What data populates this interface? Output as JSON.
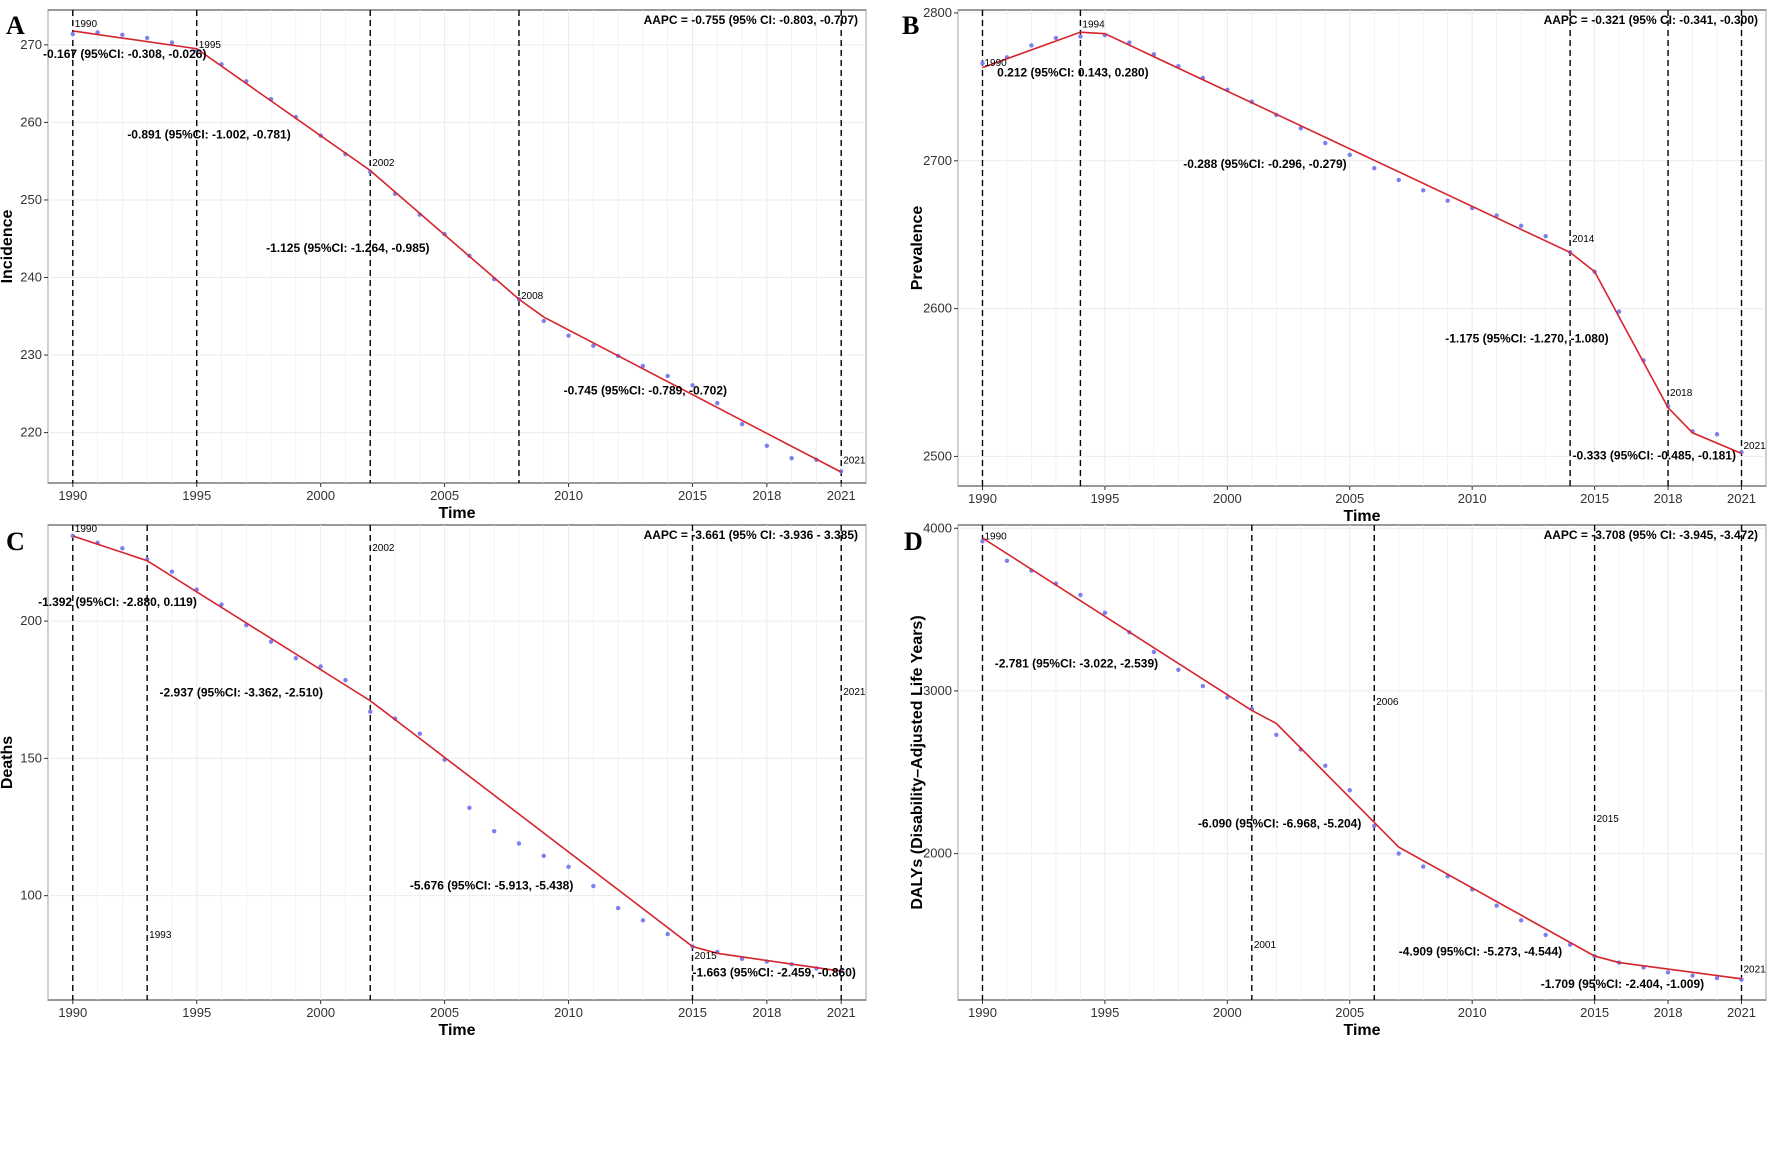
{
  "colors": {
    "fit_line": "#d7232b",
    "points": "#7b7ff0",
    "grid": "#ebebeb",
    "panel_border": "#333333",
    "joinpoint_line": "#000000"
  },
  "chart_data": [
    {
      "panel": "A",
      "type": "line",
      "ylabel": "Incidence",
      "xlabel": "Time",
      "xlim": [
        1989,
        2022
      ],
      "ylim": [
        213.5,
        274.5
      ],
      "xticks": [
        1990,
        1995,
        2000,
        2005,
        2010,
        2015,
        2018,
        2021
      ],
      "yticks": [
        220,
        230,
        240,
        250,
        260,
        270
      ],
      "aapc": "AAPC = -0.755 (95% CI: -0.803, -0.707)",
      "joinpoints": [
        1990,
        1995,
        2002,
        2008,
        2021
      ],
      "jp_labels": [
        {
          "text": "1990",
          "x": 1990,
          "y": 272.3
        },
        {
          "text": "1995",
          "x": 1995,
          "y": 269.6
        },
        {
          "text": "2002",
          "x": 2002,
          "y": 254.4
        },
        {
          "text": "2008",
          "x": 2008,
          "y": 237.2
        },
        {
          "text": "2021",
          "x": 2021,
          "y": 216.0
        }
      ],
      "segments": [
        {
          "text": "-0.167 (95%CI: -0.308, -0.026)",
          "x": 1988.8,
          "y": 268.3
        },
        {
          "text": "-0.891 (95%CI: -1.002, -0.781)",
          "x": 1992.2,
          "y": 257.9
        },
        {
          "text": "-1.125 (95%CI: -1.264, -0.985)",
          "x": 1997.8,
          "y": 243.3
        },
        {
          "text": "-0.745 (95%CI: -0.789, -0.702)",
          "x": 2009.8,
          "y": 224.9
        }
      ],
      "fit": [
        [
          1990,
          271.8
        ],
        [
          1995,
          269.5
        ],
        [
          2002,
          253.8
        ],
        [
          2008,
          237.2
        ],
        [
          2009,
          234.9
        ],
        [
          2021,
          214.9
        ]
      ],
      "points": [
        [
          1990,
          271.4
        ],
        [
          1991,
          271.6
        ],
        [
          1992,
          271.3
        ],
        [
          1993,
          270.9
        ],
        [
          1994,
          270.3
        ],
        [
          1995,
          269.3
        ],
        [
          1996,
          267.5
        ],
        [
          1997,
          265.3
        ],
        [
          1998,
          263.0
        ],
        [
          1999,
          260.7
        ],
        [
          2000,
          258.3
        ],
        [
          2001,
          255.9
        ],
        [
          2002,
          253.6
        ],
        [
          2003,
          250.8
        ],
        [
          2004,
          248.1
        ],
        [
          2005,
          245.6
        ],
        [
          2006,
          242.8
        ],
        [
          2007,
          239.8
        ],
        [
          2008,
          237.2
        ],
        [
          2009,
          234.4
        ],
        [
          2010,
          232.5
        ],
        [
          2011,
          231.2
        ],
        [
          2012,
          229.9
        ],
        [
          2013,
          228.6
        ],
        [
          2014,
          227.3
        ],
        [
          2015,
          226.1
        ],
        [
          2016,
          223.8
        ],
        [
          2017,
          221.1
        ],
        [
          2018,
          218.3
        ],
        [
          2019,
          216.7
        ],
        [
          2020,
          216.5
        ],
        [
          2021,
          215.0
        ]
      ]
    },
    {
      "panel": "B",
      "type": "line",
      "ylabel": "Prevalence",
      "xlabel": "Time",
      "xlim": [
        1989,
        2022
      ],
      "ylim": [
        2480,
        2802
      ],
      "xticks": [
        1990,
        1995,
        2000,
        2005,
        2010,
        2015,
        2018,
        2021
      ],
      "yticks": [
        2500,
        2600,
        2700,
        2800
      ],
      "aapc": "AAPC = -0.321 (95% CI: -0.341, -0.300)",
      "joinpoints": [
        1990,
        1994,
        2014,
        2018,
        2021
      ],
      "jp_labels": [
        {
          "text": "1990",
          "x": 1990,
          "y": 2764
        },
        {
          "text": "1994",
          "x": 1994,
          "y": 2790
        },
        {
          "text": "2014",
          "x": 2014,
          "y": 2645
        },
        {
          "text": "2018",
          "x": 2018,
          "y": 2541
        },
        {
          "text": "2021",
          "x": 2021,
          "y": 2505
        }
      ],
      "segments": [
        {
          "text": "0.212 (95%CI: 0.143, 0.280)",
          "x": 1990.6,
          "y": 2757
        },
        {
          "text": "-0.288 (95%CI: -0.296, -0.279)",
          "x": 1998.2,
          "y": 2695
        },
        {
          "text": "-1.175 (95%CI: -1.270, -1.080)",
          "x": 2008.9,
          "y": 2577
        },
        {
          "text": "-0.333 (95%CI: -0.485, -0.181)",
          "x": 2014.1,
          "y": 2498
        }
      ],
      "fit": [
        [
          1990,
          2763
        ],
        [
          1994,
          2787
        ],
        [
          1995,
          2786
        ],
        [
          2014,
          2638
        ],
        [
          2015,
          2625
        ],
        [
          2018,
          2533
        ],
        [
          2019,
          2516
        ],
        [
          2021,
          2502
        ]
      ],
      "points": [
        [
          1990,
          2766
        ],
        [
          1991,
          2770
        ],
        [
          1992,
          2778
        ],
        [
          1993,
          2783
        ],
        [
          1994,
          2784
        ],
        [
          1995,
          2785
        ],
        [
          1996,
          2780
        ],
        [
          1997,
          2772
        ],
        [
          1998,
          2764
        ],
        [
          1999,
          2756
        ],
        [
          2000,
          2748
        ],
        [
          2001,
          2740
        ],
        [
          2002,
          2731
        ],
        [
          2003,
          2722
        ],
        [
          2004,
          2712
        ],
        [
          2005,
          2704
        ],
        [
          2006,
          2695
        ],
        [
          2007,
          2687
        ],
        [
          2008,
          2680
        ],
        [
          2009,
          2673
        ],
        [
          2010,
          2668
        ],
        [
          2011,
          2663
        ],
        [
          2012,
          2656
        ],
        [
          2013,
          2649
        ],
        [
          2014,
          2638
        ],
        [
          2015,
          2625
        ],
        [
          2016,
          2598
        ],
        [
          2017,
          2565
        ],
        [
          2018,
          2534
        ],
        [
          2019,
          2517
        ],
        [
          2020,
          2515
        ],
        [
          2021,
          2503
        ]
      ]
    },
    {
      "panel": "C",
      "type": "line",
      "ylabel": "Deaths",
      "xlabel": "Time",
      "xlim": [
        1989,
        2022
      ],
      "ylim": [
        62,
        235
      ],
      "xticks": [
        1990,
        1995,
        2000,
        2005,
        2010,
        2015,
        2018,
        2021
      ],
      "yticks": [
        100,
        150,
        200
      ],
      "aapc": "AAPC = -3.661 (95% CI: -3.936 - 3.385)",
      "joinpoints": [
        1990,
        1993,
        2002,
        2015,
        2021
      ],
      "jp_labels": [
        {
          "text": "1990",
          "x": 1990,
          "y": 232.5
        },
        {
          "text": "1993",
          "x": 1993,
          "y": 84.5
        },
        {
          "text": "2002",
          "x": 2002,
          "y": 225.5
        },
        {
          "text": "2015",
          "x": 2015,
          "y": 77.0
        },
        {
          "text": "2021",
          "x": 2021,
          "y": 173.0
        }
      ],
      "segments": [
        {
          "text": "-1.392 (95%CI: -2.880, 0.119)",
          "x": 1988.6,
          "y": 205.5
        },
        {
          "text": "-2.937 (95%CI: -3.362, -2.510)",
          "x": 1993.5,
          "y": 172.5
        },
        {
          "text": "-5.676 (95%CI: -5.913, -5.438)",
          "x": 2003.6,
          "y": 102.3
        },
        {
          "text": "-1.663 (95%CI: -2.459, -0.860)",
          "x": 2015.0,
          "y": 70.5
        }
      ],
      "fit": [
        [
          1990,
          231.0
        ],
        [
          1993,
          222.0
        ],
        [
          2002,
          171.0
        ],
        [
          2015,
          81.5
        ],
        [
          2016,
          79.0
        ],
        [
          2021,
          72.5
        ]
      ],
      "points": [
        [
          1990,
          231.0
        ],
        [
          1991,
          228.5
        ],
        [
          1992,
          226.5
        ],
        [
          1993,
          222.5
        ],
        [
          1994,
          218.0
        ],
        [
          1995,
          211.5
        ],
        [
          1996,
          206.0
        ],
        [
          1997,
          198.5
        ],
        [
          1998,
          192.5
        ],
        [
          1999,
          186.5
        ],
        [
          2000,
          183.5
        ],
        [
          2001,
          178.5
        ],
        [
          2002,
          167.0
        ],
        [
          2003,
          164.5
        ],
        [
          2004,
          159.0
        ],
        [
          2005,
          149.5
        ],
        [
          2006,
          132.0
        ],
        [
          2007,
          123.5
        ],
        [
          2008,
          119.0
        ],
        [
          2009,
          114.5
        ],
        [
          2010,
          110.5
        ],
        [
          2011,
          103.5
        ],
        [
          2012,
          95.5
        ],
        [
          2013,
          91.0
        ],
        [
          2014,
          86.0
        ],
        [
          2015,
          81.5
        ],
        [
          2016,
          79.5
        ],
        [
          2017,
          77.0
        ],
        [
          2018,
          76.0
        ],
        [
          2019,
          75.0
        ],
        [
          2020,
          73.5
        ],
        [
          2021,
          72.5
        ]
      ]
    },
    {
      "panel": "D",
      "type": "line",
      "ylabel": "DALYs (Disability–Adjusted Life Years)",
      "xlabel": "Time",
      "xlim": [
        1989,
        2022
      ],
      "ylim": [
        1100,
        4020
      ],
      "xticks": [
        1990,
        1995,
        2000,
        2005,
        2010,
        2015,
        2018,
        2021
      ],
      "yticks": [
        2000,
        3000,
        4000
      ],
      "aapc": "AAPC = -3.708 (95% CI: -3.945, -3.472)",
      "joinpoints": [
        1990,
        2001,
        2006,
        2015,
        2021
      ],
      "jp_labels": [
        {
          "text": "1990",
          "x": 1990,
          "y": 3930
        },
        {
          "text": "2001",
          "x": 2001,
          "y": 1420
        },
        {
          "text": "2006",
          "x": 2006,
          "y": 2915
        },
        {
          "text": "2015",
          "x": 2015,
          "y": 2195
        },
        {
          "text": "2021",
          "x": 2021,
          "y": 1270
        }
      ],
      "segments": [
        {
          "text": "-2.781 (95%CI: -3.022, -2.539)",
          "x": 1990.5,
          "y": 3145
        },
        {
          "text": "-6.090 (95%CI: -6.968, -5.204)",
          "x": 1998.8,
          "y": 2160
        },
        {
          "text": "-4.909 (95%CI: -5.273, -4.544)",
          "x": 2007.0,
          "y": 1375
        },
        {
          "text": "-1.709 (95%CI: -2.404, -1.009)",
          "x": 2012.8,
          "y": 1175
        }
      ],
      "fit": [
        [
          1990,
          3940
        ],
        [
          2001,
          2880
        ],
        [
          2002,
          2800
        ],
        [
          2007,
          2040
        ],
        [
          2015,
          1370
        ],
        [
          2016,
          1330
        ],
        [
          2021,
          1230
        ]
      ],
      "points": [
        [
          1990,
          3920
        ],
        [
          1991,
          3800
        ],
        [
          1992,
          3740
        ],
        [
          1993,
          3660
        ],
        [
          1994,
          3590
        ],
        [
          1995,
          3480
        ],
        [
          1996,
          3360
        ],
        [
          1997,
          3240
        ],
        [
          1998,
          3130
        ],
        [
          1999,
          3030
        ],
        [
          2000,
          2960
        ],
        [
          2001,
          2890
        ],
        [
          2002,
          2730
        ],
        [
          2003,
          2640
        ],
        [
          2004,
          2540
        ],
        [
          2005,
          2390
        ],
        [
          2006,
          2170
        ],
        [
          2007,
          2000
        ],
        [
          2008,
          1920
        ],
        [
          2009,
          1860
        ],
        [
          2010,
          1780
        ],
        [
          2011,
          1680
        ],
        [
          2012,
          1590
        ],
        [
          2013,
          1500
        ],
        [
          2014,
          1440
        ],
        [
          2015,
          1370
        ],
        [
          2016,
          1330
        ],
        [
          2017,
          1300
        ],
        [
          2018,
          1270
        ],
        [
          2019,
          1250
        ],
        [
          2020,
          1235
        ],
        [
          2021,
          1225
        ]
      ]
    }
  ]
}
